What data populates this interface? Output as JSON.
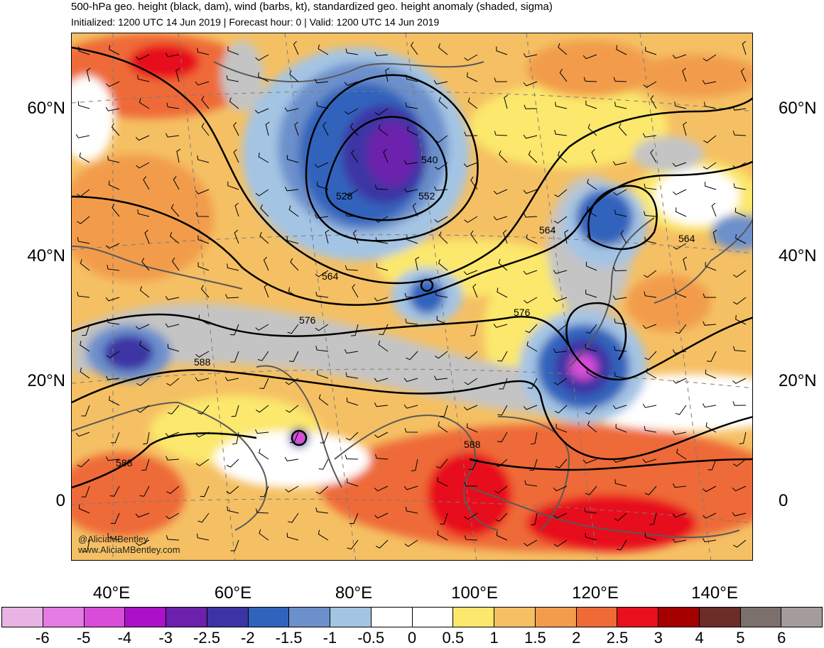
{
  "header": {
    "title": "500-hPa geo. height (black, dam), wind (barbs, kt), standardized geo. height anomaly (shaded, sigma)",
    "subtitle": "Initialized: 1200 UTC 14 Jun 2019 | Forecast hour: 0 | Valid: 1200 UTC 14 Jun 2019"
  },
  "axes": {
    "lat_labels": [
      "60°N",
      "40°N",
      "20°N",
      "0"
    ],
    "lon_labels": [
      "40°E",
      "60°E",
      "80°E",
      "100°E",
      "120°E",
      "140°E"
    ]
  },
  "contour_labels": [
    "540",
    "528",
    "552",
    "564",
    "564",
    "564",
    "576",
    "576",
    "588",
    "588",
    "588"
  ],
  "credits": {
    "handle": "@AliciaMBentley",
    "website": "www.AliciaMBentley.com"
  },
  "colorbar": {
    "colors": [
      "#e8b4e4",
      "#e47ce4",
      "#d84cd8",
      "#ac10c8",
      "#6c20ac",
      "#3c34a4",
      "#3064bc",
      "#6c90cc",
      "#a4c4e4",
      "#ffffff",
      "#ffffff",
      "#fbe86c",
      "#f5c063",
      "#f29c4c",
      "#ee6a37",
      "#e8101c",
      "#a40000",
      "#6c2c28",
      "#7c706c",
      "#a49c9c"
    ],
    "labels": [
      "-6",
      "-5",
      "-4",
      "-3",
      "-2.5",
      "-2",
      "-1.5",
      "-1",
      "-0.5",
      "0",
      "0.5",
      "1",
      "1.5",
      "2",
      "2.5",
      "3",
      "4",
      "5",
      "6"
    ]
  },
  "colors": {
    "ocean_gray": "#c4c4c4",
    "border": "#595959",
    "contour": "#000000"
  }
}
